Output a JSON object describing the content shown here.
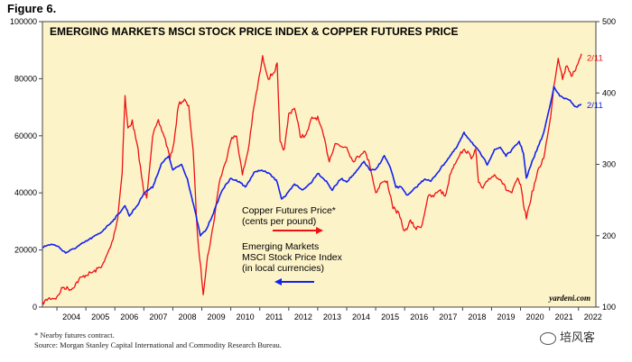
{
  "figure_label": "Figure 6.",
  "chart_data": {
    "type": "line",
    "title": "EMERGING MARKETS MSCI STOCK PRICE INDEX & COPPER FUTURES PRICE",
    "x_range": [
      2003.5,
      2022.6
    ],
    "x_ticks": [
      "2004",
      "2005",
      "2006",
      "2007",
      "2008",
      "2009",
      "2010",
      "2011",
      "2012",
      "2013",
      "2014",
      "2015",
      "2016",
      "2017",
      "2018",
      "2019",
      "2020",
      "2021",
      "2022"
    ],
    "y_left": {
      "range": [
        0,
        100000
      ],
      "ticks": [
        "0",
        "20000",
        "40000",
        "60000",
        "80000",
        "100000"
      ]
    },
    "y_right": {
      "range": [
        100,
        500
      ],
      "ticks": [
        "100",
        "200",
        "300",
        "400",
        "500"
      ]
    },
    "series": [
      {
        "name": "Copper Futures Price*",
        "sub": "(cents per pound)",
        "axis": "right",
        "color": "#ee1111",
        "end_label": "2/11",
        "points": [
          [
            2003.5,
            105
          ],
          [
            2003.7,
            112
          ],
          [
            2004.0,
            113
          ],
          [
            2004.2,
            128
          ],
          [
            2004.5,
            125
          ],
          [
            2004.8,
            140
          ],
          [
            2005.0,
            145
          ],
          [
            2005.3,
            150
          ],
          [
            2005.6,
            160
          ],
          [
            2005.9,
            190
          ],
          [
            2006.1,
            225
          ],
          [
            2006.25,
            290
          ],
          [
            2006.35,
            395
          ],
          [
            2006.45,
            350
          ],
          [
            2006.6,
            360
          ],
          [
            2006.8,
            320
          ],
          [
            2007.0,
            260
          ],
          [
            2007.1,
            255
          ],
          [
            2007.3,
            340
          ],
          [
            2007.5,
            360
          ],
          [
            2007.7,
            340
          ],
          [
            2007.9,
            310
          ],
          [
            2008.0,
            320
          ],
          [
            2008.2,
            385
          ],
          [
            2008.4,
            390
          ],
          [
            2008.55,
            380
          ],
          [
            2008.7,
            320
          ],
          [
            2008.85,
            200
          ],
          [
            2009.0,
            140
          ],
          [
            2009.05,
            120
          ],
          [
            2009.2,
            170
          ],
          [
            2009.4,
            215
          ],
          [
            2009.6,
            275
          ],
          [
            2009.8,
            300
          ],
          [
            2010.0,
            335
          ],
          [
            2010.2,
            340
          ],
          [
            2010.4,
            285
          ],
          [
            2010.6,
            320
          ],
          [
            2010.8,
            380
          ],
          [
            2011.1,
            450
          ],
          [
            2011.3,
            420
          ],
          [
            2011.5,
            430
          ],
          [
            2011.6,
            440
          ],
          [
            2011.7,
            330
          ],
          [
            2011.85,
            320
          ],
          [
            2012.0,
            370
          ],
          [
            2012.2,
            380
          ],
          [
            2012.4,
            340
          ],
          [
            2012.6,
            340
          ],
          [
            2012.8,
            365
          ],
          [
            2013.0,
            365
          ],
          [
            2013.2,
            340
          ],
          [
            2013.4,
            305
          ],
          [
            2013.6,
            330
          ],
          [
            2013.8,
            325
          ],
          [
            2014.0,
            325
          ],
          [
            2014.2,
            305
          ],
          [
            2014.4,
            310
          ],
          [
            2014.6,
            320
          ],
          [
            2014.8,
            300
          ],
          [
            2015.0,
            260
          ],
          [
            2015.2,
            275
          ],
          [
            2015.4,
            275
          ],
          [
            2015.6,
            240
          ],
          [
            2015.8,
            230
          ],
          [
            2016.0,
            205
          ],
          [
            2016.2,
            220
          ],
          [
            2016.4,
            210
          ],
          [
            2016.6,
            215
          ],
          [
            2016.8,
            255
          ],
          [
            2017.0,
            255
          ],
          [
            2017.2,
            265
          ],
          [
            2017.4,
            255
          ],
          [
            2017.6,
            290
          ],
          [
            2017.9,
            315
          ],
          [
            2018.1,
            320
          ],
          [
            2018.3,
            310
          ],
          [
            2018.45,
            320
          ],
          [
            2018.55,
            275
          ],
          [
            2018.7,
            265
          ],
          [
            2018.9,
            280
          ],
          [
            2019.1,
            285
          ],
          [
            2019.3,
            280
          ],
          [
            2019.5,
            265
          ],
          [
            2019.7,
            260
          ],
          [
            2019.9,
            280
          ],
          [
            2020.0,
            270
          ],
          [
            2020.1,
            245
          ],
          [
            2020.2,
            225
          ],
          [
            2020.4,
            260
          ],
          [
            2020.6,
            290
          ],
          [
            2020.8,
            310
          ],
          [
            2021.0,
            355
          ],
          [
            2021.15,
            410
          ],
          [
            2021.3,
            450
          ],
          [
            2021.45,
            420
          ],
          [
            2021.6,
            440
          ],
          [
            2021.75,
            425
          ],
          [
            2021.9,
            430
          ],
          [
            2022.0,
            445
          ],
          [
            2022.1,
            455
          ]
        ]
      },
      {
        "name": "Emerging Markets MSCI Stock Price Index",
        "sub": "(in local currencies)",
        "axis": "left",
        "color": "#1122ee",
        "end_label": "2/11",
        "points": [
          [
            2003.5,
            21000
          ],
          [
            2003.8,
            22000
          ],
          [
            2004.0,
            21500
          ],
          [
            2004.3,
            19000
          ],
          [
            2004.6,
            20500
          ],
          [
            2005.0,
            23000
          ],
          [
            2005.5,
            26000
          ],
          [
            2006.0,
            31000
          ],
          [
            2006.35,
            35500
          ],
          [
            2006.5,
            32000
          ],
          [
            2006.8,
            36000
          ],
          [
            2007.0,
            40000
          ],
          [
            2007.3,
            42000
          ],
          [
            2007.6,
            50000
          ],
          [
            2007.85,
            53000
          ],
          [
            2008.0,
            48000
          ],
          [
            2008.3,
            50000
          ],
          [
            2008.5,
            45000
          ],
          [
            2008.8,
            32000
          ],
          [
            2008.95,
            25000
          ],
          [
            2009.15,
            27000
          ],
          [
            2009.4,
            33000
          ],
          [
            2009.7,
            41000
          ],
          [
            2010.0,
            45000
          ],
          [
            2010.3,
            44000
          ],
          [
            2010.5,
            42000
          ],
          [
            2010.8,
            47000
          ],
          [
            2011.0,
            48000
          ],
          [
            2011.3,
            47000
          ],
          [
            2011.6,
            44000
          ],
          [
            2011.75,
            38000
          ],
          [
            2011.9,
            39000
          ],
          [
            2012.2,
            43000
          ],
          [
            2012.5,
            41000
          ],
          [
            2012.8,
            44000
          ],
          [
            2013.0,
            47000
          ],
          [
            2013.3,
            44000
          ],
          [
            2013.5,
            41000
          ],
          [
            2013.8,
            45000
          ],
          [
            2014.0,
            44000
          ],
          [
            2014.3,
            47000
          ],
          [
            2014.6,
            51000
          ],
          [
            2014.8,
            48000
          ],
          [
            2015.0,
            48000
          ],
          [
            2015.3,
            53000
          ],
          [
            2015.5,
            49000
          ],
          [
            2015.7,
            42000
          ],
          [
            2015.9,
            42000
          ],
          [
            2016.1,
            39000
          ],
          [
            2016.4,
            42000
          ],
          [
            2016.7,
            45000
          ],
          [
            2016.9,
            44000
          ],
          [
            2017.2,
            48000
          ],
          [
            2017.5,
            52000
          ],
          [
            2017.8,
            56000
          ],
          [
            2018.05,
            61000
          ],
          [
            2018.3,
            58000
          ],
          [
            2018.6,
            54000
          ],
          [
            2018.85,
            50000
          ],
          [
            2019.1,
            55000
          ],
          [
            2019.3,
            56000
          ],
          [
            2019.5,
            53000
          ],
          [
            2019.7,
            55000
          ],
          [
            2019.95,
            58000
          ],
          [
            2020.1,
            54000
          ],
          [
            2020.2,
            45000
          ],
          [
            2020.4,
            51000
          ],
          [
            2020.6,
            56000
          ],
          [
            2020.8,
            61000
          ],
          [
            2021.0,
            70000
          ],
          [
            2021.15,
            77000
          ],
          [
            2021.35,
            74000
          ],
          [
            2021.55,
            73000
          ],
          [
            2021.75,
            72000
          ],
          [
            2021.9,
            70000
          ],
          [
            2022.0,
            70500
          ],
          [
            2022.1,
            71000
          ]
        ]
      }
    ],
    "legend": [
      {
        "name": "Copper Futures Price*",
        "sub": "(cents per pound)"
      },
      {
        "name": "Emerging Markets",
        "name2": "MSCI Stock Price Index",
        "sub": "(in local currencies)"
      }
    ],
    "credit": "yardeni.com"
  },
  "footnote": {
    "line1": "*   Nearby futures contract.",
    "line2": "Source: Morgan Stanley Capital International and Commodity Research Bureau."
  },
  "watermark": "培风客"
}
